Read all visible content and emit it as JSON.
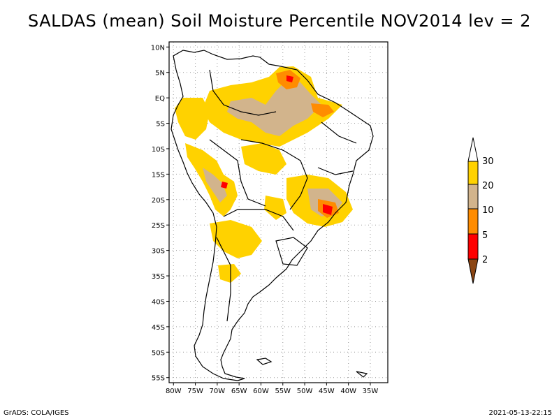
{
  "title": "SALDAS (mean) Soil Moisture Percentile NOV2014 lev = 2",
  "map": {
    "lat_labels": [
      "10N",
      "5N",
      "EQ",
      "5S",
      "10S",
      "15S",
      "20S",
      "25S",
      "30S",
      "35S",
      "40S",
      "45S",
      "50S",
      "55S"
    ],
    "lon_labels": [
      "80W",
      "75W",
      "70W",
      "65W",
      "60W",
      "55W",
      "50W",
      "45W",
      "40W",
      "35W"
    ],
    "lat_values": [
      10,
      5,
      0,
      -5,
      -10,
      -15,
      -20,
      -25,
      -30,
      -35,
      -40,
      -45,
      -50,
      -55
    ],
    "lon_values": [
      -80,
      -75,
      -70,
      -65,
      -60,
      -55,
      -50,
      -45,
      -40,
      -35
    ],
    "lat_range": [
      -56,
      11
    ],
    "lon_range": [
      -81,
      -31
    ]
  },
  "legend": {
    "labels": [
      "30",
      "20",
      "10",
      "5",
      "2"
    ],
    "colors": {
      "above30": "#ffffff",
      "c20_30": "#ffd200",
      "c10_20": "#d2b48c",
      "c5_10": "#ff8c00",
      "c2_5": "#ff0000",
      "below2": "#8b4513"
    }
  },
  "footer": {
    "left": "GrADS: COLA/IGES",
    "right": "2021-05-13-22:15"
  }
}
